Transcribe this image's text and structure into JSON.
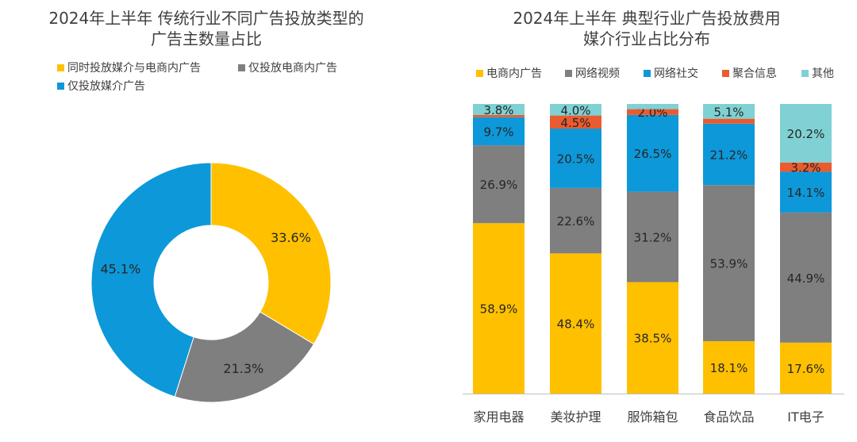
{
  "colors": {
    "yellow": "#FFC000",
    "gray": "#7F7F7F",
    "blue": "#0D98D9",
    "red": "#EA5B2F",
    "teal": "#7FD1D3"
  },
  "chart_data": [
    {
      "type": "pie",
      "title_lines": [
        "2024年上半年 传统行业不同广告投放类型的",
        "广告主数量占比"
      ],
      "legend": [
        "同时投放媒介与电商内广告",
        "仅投放电商内广告",
        "仅投放媒介广告"
      ],
      "slices": [
        {
          "name": "同时投放媒介与电商内广告",
          "value": 33.6,
          "label": "33.6%",
          "color": "#FFC000"
        },
        {
          "name": "仅投放电商内广告",
          "value": 21.3,
          "label": "21.3%",
          "color": "#7F7F7F"
        },
        {
          "name": "仅投放媒介广告",
          "value": 45.1,
          "label": "45.1%",
          "color": "#0D98D9"
        }
      ]
    },
    {
      "type": "bar",
      "stacked": true,
      "title_lines": [
        "2024年上半年 典型行业广告投放费用",
        "媒介行业占比分布"
      ],
      "categories": [
        "家用电器",
        "美妆护理",
        "服饰箱包",
        "食品饮品",
        "IT电子"
      ],
      "series": [
        {
          "name": "电商内广告",
          "color": "#FFC000",
          "values": [
            58.9,
            48.4,
            38.5,
            18.1,
            17.6
          ],
          "labels": [
            "58.9%",
            "48.4%",
            "38.5%",
            "18.1%",
            "17.6%"
          ]
        },
        {
          "name": "网络视频",
          "color": "#7F7F7F",
          "values": [
            26.9,
            22.6,
            31.2,
            53.9,
            44.9
          ],
          "labels": [
            "26.9%",
            "22.6%",
            "31.2%",
            "53.9%",
            "44.9%"
          ]
        },
        {
          "name": "网络社交",
          "color": "#0D98D9",
          "values": [
            9.7,
            20.5,
            26.5,
            21.2,
            14.1
          ],
          "labels": [
            "9.7%",
            "20.5%",
            "26.5%",
            "21.2%",
            "14.1%"
          ]
        },
        {
          "name": "聚合信息",
          "color": "#EA5B2F",
          "values": [
            0.8,
            4.5,
            2.0,
            1.7,
            3.2
          ],
          "labels": [
            "",
            "4.5%",
            "2.0%",
            "",
            "3.2%"
          ]
        },
        {
          "name": "其他",
          "color": "#7FD1D3",
          "values": [
            3.8,
            4.0,
            1.8,
            5.1,
            20.2
          ],
          "labels": [
            "3.8%",
            "4.0%",
            "",
            "5.1%",
            "20.2%"
          ]
        }
      ],
      "ylim": [
        0,
        100
      ]
    }
  ]
}
